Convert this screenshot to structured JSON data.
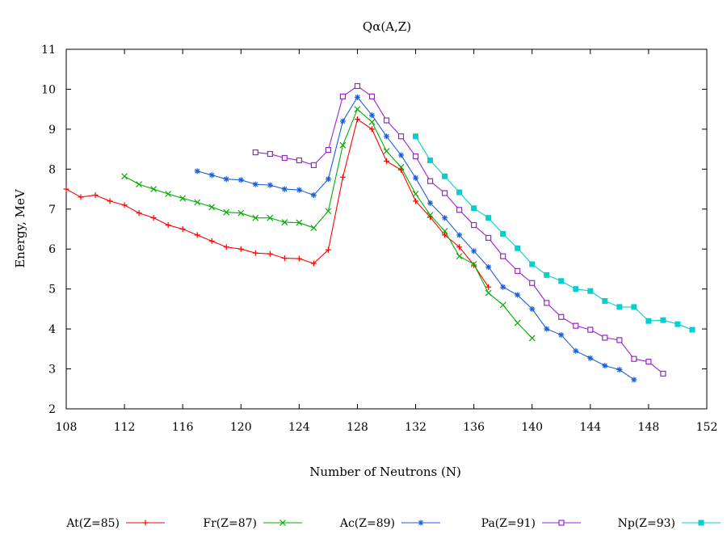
{
  "chart_data": {
    "type": "line",
    "title": "Qα(A,Z)",
    "xlabel": "Number of Neutrons (N)",
    "ylabel": "Energy, MeV",
    "xlim": [
      108,
      152
    ],
    "ylim": [
      2,
      11
    ],
    "xticks": [
      108,
      112,
      116,
      120,
      124,
      128,
      132,
      136,
      140,
      144,
      148,
      152
    ],
    "yticks": [
      2,
      3,
      4,
      5,
      6,
      7,
      8,
      9,
      10,
      11
    ],
    "grid": false,
    "legend_position": "bottom",
    "series": [
      {
        "name": "At(Z=85)",
        "color": "#ff0000",
        "marker": "plus",
        "x": [
          108,
          109,
          110,
          111,
          112,
          113,
          114,
          115,
          116,
          117,
          118,
          119,
          120,
          121,
          122,
          123,
          124,
          125,
          126,
          127,
          128,
          129,
          130,
          131,
          132,
          133,
          134,
          135,
          136,
          137
        ],
        "y": [
          7.5,
          7.3,
          7.35,
          7.2,
          7.1,
          6.9,
          6.78,
          6.6,
          6.5,
          6.35,
          6.2,
          6.05,
          6.0,
          5.9,
          5.88,
          5.77,
          5.76,
          5.64,
          5.98,
          7.8,
          9.25,
          9.0,
          8.2,
          7.98,
          7.2,
          6.8,
          6.35,
          6.05,
          5.6,
          5.05
        ]
      },
      {
        "name": "Fr(Z=87)",
        "color": "#00b000",
        "marker": "x",
        "x": [
          112,
          113,
          114,
          115,
          116,
          117,
          118,
          119,
          120,
          121,
          122,
          123,
          124,
          125,
          126,
          127,
          128,
          129,
          130,
          131,
          132,
          133,
          134,
          135,
          136,
          137,
          138,
          139,
          140
        ],
        "y": [
          7.82,
          7.62,
          7.5,
          7.38,
          7.27,
          7.17,
          7.05,
          6.92,
          6.9,
          6.78,
          6.78,
          6.67,
          6.66,
          6.53,
          6.95,
          8.6,
          9.5,
          9.18,
          8.45,
          8.05,
          7.38,
          6.85,
          6.45,
          5.82,
          5.62,
          4.9,
          4.6,
          4.15,
          3.77
        ]
      },
      {
        "name": "Ac(Z=89)",
        "color": "#1f5fd0",
        "marker": "star",
        "x": [
          117,
          118,
          119,
          120,
          121,
          122,
          123,
          124,
          125,
          126,
          127,
          128,
          129,
          130,
          131,
          132,
          133,
          134,
          135,
          136,
          137,
          138,
          139,
          140,
          141,
          142,
          143,
          144,
          145,
          146,
          147
        ],
        "y": [
          7.95,
          7.85,
          7.75,
          7.73,
          7.62,
          7.6,
          7.5,
          7.48,
          7.35,
          7.75,
          9.2,
          9.8,
          9.35,
          8.82,
          8.35,
          7.78,
          7.15,
          6.78,
          6.35,
          5.95,
          5.55,
          5.05,
          4.85,
          4.5,
          4.0,
          3.85,
          3.45,
          3.27,
          3.08,
          2.98,
          2.73
        ]
      },
      {
        "name": "Pa(Z=91)",
        "color": "#a020d0",
        "marker": "square-open",
        "x": [
          121,
          122,
          123,
          124,
          125,
          126,
          127,
          128,
          129,
          130,
          131,
          132,
          133,
          134,
          135,
          136,
          137,
          138,
          139,
          140,
          141,
          142,
          143,
          144,
          145,
          146,
          147,
          148,
          149
        ],
        "y": [
          8.42,
          8.38,
          8.28,
          8.22,
          8.1,
          8.48,
          9.82,
          10.08,
          9.82,
          9.22,
          8.82,
          8.32,
          7.7,
          7.4,
          6.98,
          6.6,
          6.28,
          5.82,
          5.45,
          5.15,
          4.65,
          4.3,
          4.08,
          3.98,
          3.78,
          3.72,
          3.25,
          3.18,
          2.88
        ]
      },
      {
        "name": "Np(Z=93)",
        "color": "#00d0d0",
        "marker": "square-filled",
        "x": [
          132,
          133,
          134,
          135,
          136,
          137,
          138,
          139,
          140,
          141,
          142,
          143,
          144,
          145,
          146,
          147,
          148,
          149,
          150,
          151
        ],
        "y": [
          8.82,
          8.22,
          7.82,
          7.42,
          7.02,
          6.78,
          6.38,
          6.02,
          5.62,
          5.35,
          5.2,
          5.0,
          4.95,
          4.7,
          4.55,
          4.55,
          4.2,
          4.22,
          4.12,
          3.98
        ]
      }
    ]
  }
}
